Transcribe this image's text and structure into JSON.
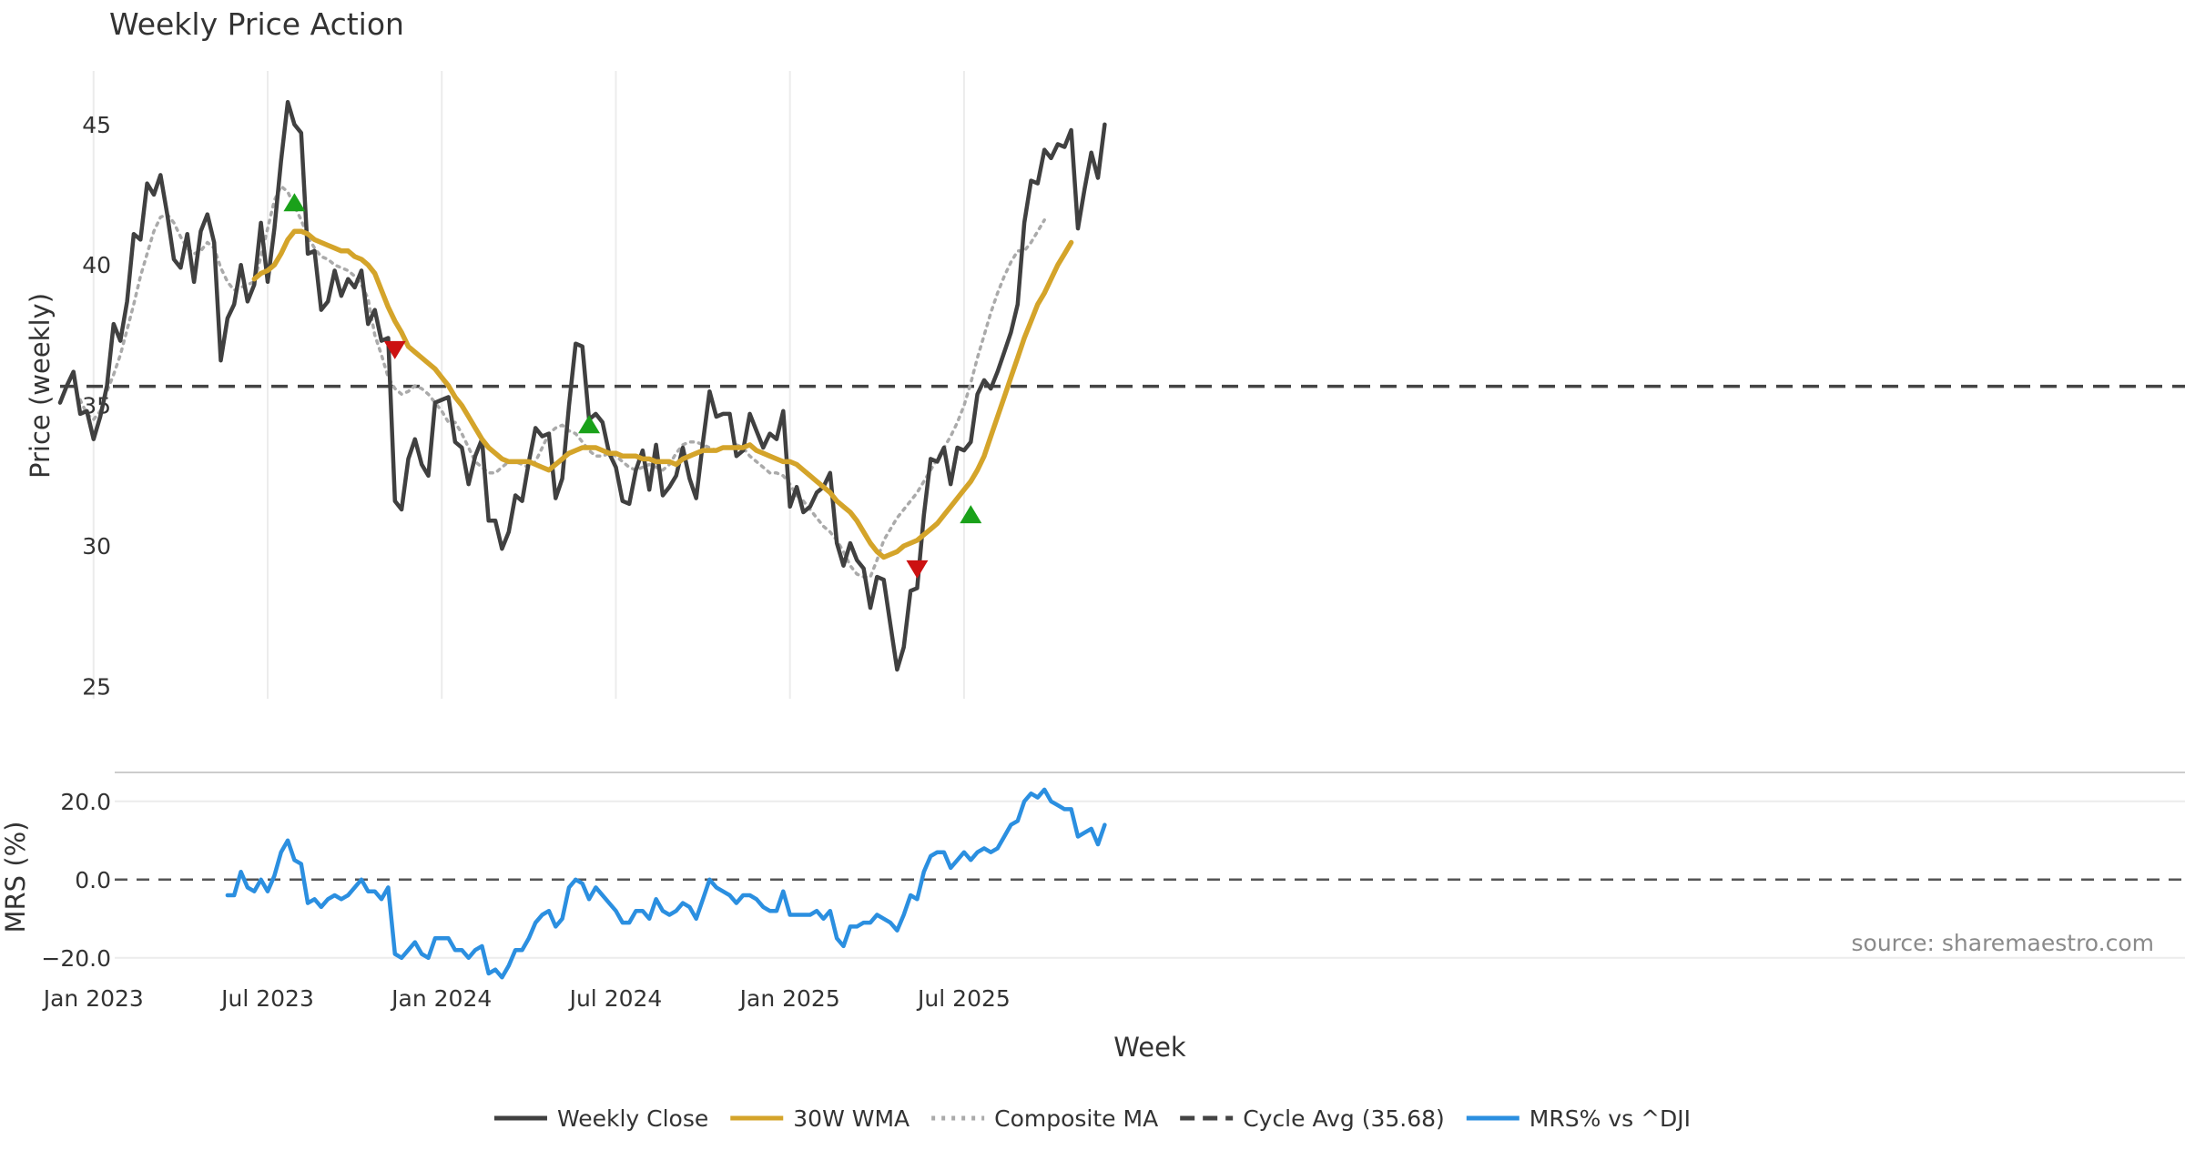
{
  "chart_data": [
    {
      "type": "line",
      "panel": "price",
      "title": "Weekly Price Action",
      "ylabel": "Price (weekly)",
      "ylim": [
        24.5,
        47.0
      ],
      "yticks": [
        25,
        30,
        35,
        40,
        45
      ],
      "grid": "vertical",
      "cycle_avg": 35.68,
      "series": [
        {
          "name": "Weekly Close",
          "color": "#404040",
          "style": "solid",
          "start_week": 0,
          "values": [
            35.1,
            35.7,
            36.2,
            34.7,
            34.8,
            33.8,
            34.6,
            35.7,
            37.9,
            37.3,
            38.7,
            41.1,
            40.9,
            42.9,
            42.5,
            43.2,
            41.8,
            40.2,
            39.9,
            41.1,
            39.4,
            41.2,
            41.8,
            40.8,
            36.6,
            38.1,
            38.6,
            40.0,
            38.7,
            39.3,
            41.5,
            39.4,
            41.3,
            43.7,
            45.8,
            45.0,
            44.7,
            40.4,
            40.5,
            38.4,
            38.7,
            39.8,
            38.9,
            39.5,
            39.2,
            39.8,
            37.9,
            38.4,
            37.3,
            37.4,
            31.6,
            31.3,
            33.1,
            33.8,
            32.9,
            32.5,
            35.1,
            35.2,
            35.3,
            33.7,
            33.5,
            32.2,
            33.2,
            33.8,
            30.9,
            30.9,
            29.9,
            30.5,
            31.8,
            31.6,
            33.0,
            34.2,
            33.9,
            34.0,
            31.7,
            32.4,
            35.0,
            37.2,
            37.1,
            34.5,
            34.7,
            34.4,
            33.3,
            32.8,
            31.6,
            31.5,
            32.7,
            33.4,
            32.0,
            33.6,
            31.8,
            32.1,
            32.5,
            33.5,
            32.4,
            31.7,
            33.7,
            35.5,
            34.6,
            34.7,
            34.7,
            33.2,
            33.4,
            34.7,
            34.1,
            33.5,
            34.0,
            33.8,
            34.8,
            31.4,
            32.1,
            31.2,
            31.4,
            31.9,
            32.1,
            32.6,
            30.1,
            29.3,
            30.1,
            29.5,
            29.2,
            27.8,
            28.9,
            28.8,
            27.2,
            25.6,
            26.4,
            28.4,
            28.5,
            31.1,
            33.1,
            33.0,
            33.5,
            32.2,
            33.5,
            33.4,
            33.7,
            35.4,
            35.9,
            35.6,
            36.2,
            36.9,
            37.6,
            38.6,
            41.5,
            43.0,
            42.9,
            44.1,
            43.8,
            44.3,
            44.2,
            44.8,
            41.3,
            42.7,
            44.0,
            43.1,
            45.0
          ]
        },
        {
          "name": "30W WMA",
          "color": "#d4a42a",
          "style": "solid",
          "start_week": 29,
          "values": [
            39.5,
            39.7,
            39.8,
            40.0,
            40.4,
            40.9,
            41.2,
            41.2,
            41.1,
            40.9,
            40.8,
            40.7,
            40.6,
            40.5,
            40.5,
            40.3,
            40.2,
            40.0,
            39.7,
            39.1,
            38.5,
            38.0,
            37.6,
            37.1,
            36.9,
            36.7,
            36.5,
            36.3,
            36.0,
            35.7,
            35.3,
            35.0,
            34.6,
            34.2,
            33.8,
            33.5,
            33.3,
            33.1,
            33.0,
            33.0,
            33.0,
            33.0,
            32.9,
            32.8,
            32.7,
            32.9,
            33.1,
            33.3,
            33.4,
            33.5,
            33.5,
            33.5,
            33.4,
            33.3,
            33.3,
            33.2,
            33.2,
            33.2,
            33.1,
            33.1,
            33.0,
            33.0,
            33.0,
            32.9,
            33.1,
            33.2,
            33.3,
            33.4,
            33.4,
            33.4,
            33.5,
            33.5,
            33.5,
            33.5,
            33.6,
            33.4,
            33.3,
            33.2,
            33.1,
            33.0,
            33.0,
            32.9,
            32.7,
            32.5,
            32.3,
            32.1,
            31.9,
            31.6,
            31.4,
            31.2,
            30.9,
            30.5,
            30.1,
            29.8,
            29.6,
            29.7,
            29.8,
            30.0,
            30.1,
            30.2,
            30.4,
            30.6,
            30.8,
            31.1,
            31.4,
            31.7,
            32.0,
            32.3,
            32.7,
            33.2,
            33.9,
            34.6,
            35.3,
            36.0,
            36.7,
            37.4,
            38.0,
            38.6,
            39.0,
            39.5,
            40.0,
            40.4,
            40.8
          ]
        },
        {
          "name": "Composite MA",
          "color": "#aaaaaa",
          "style": "dotted",
          "start_week": 3,
          "values": [
            35.2,
            34.7,
            34.5,
            34.8,
            35.5,
            36.1,
            36.8,
            37.7,
            38.6,
            39.6,
            40.4,
            41.2,
            41.7,
            41.8,
            41.5,
            41.0,
            40.6,
            40.4,
            40.5,
            40.8,
            40.6,
            39.9,
            39.4,
            39.1,
            39.2,
            39.3,
            39.4,
            40.3,
            41.3,
            42.3,
            42.8,
            42.6,
            42.1,
            41.6,
            41.0,
            40.6,
            40.3,
            40.2,
            40.0,
            39.9,
            39.8,
            39.6,
            39.3,
            38.8,
            37.5,
            36.8,
            36.0,
            35.6,
            35.4,
            35.5,
            35.7,
            35.6,
            35.4,
            35.1,
            34.8,
            34.4,
            34.4,
            34.0,
            33.5,
            33.0,
            32.8,
            32.6,
            32.6,
            32.8,
            33.0,
            33.0,
            32.9,
            32.8,
            33.0,
            33.5,
            34.0,
            34.2,
            34.3,
            34.1,
            34.0,
            33.7,
            33.4,
            33.2,
            33.2,
            33.3,
            33.2,
            33.0,
            32.8,
            32.7,
            32.8,
            32.9,
            32.8,
            32.7,
            32.9,
            33.3,
            33.6,
            33.7,
            33.7,
            33.6,
            33.5,
            33.4,
            33.5,
            33.5,
            33.6,
            33.5,
            33.2,
            33.0,
            32.8,
            32.6,
            32.6,
            32.5,
            32.2,
            31.8,
            31.6,
            31.3,
            31.0,
            30.7,
            30.5,
            30.2,
            29.8,
            29.3,
            29.0,
            28.9,
            28.9,
            29.5,
            30.2,
            30.6,
            31.0,
            31.3,
            31.6,
            31.9,
            32.3,
            32.7,
            33.1,
            33.5,
            33.9,
            34.4,
            35.0,
            35.8,
            36.7,
            37.5,
            38.3,
            39.0,
            39.6,
            40.1,
            40.5,
            40.5,
            40.8,
            41.2,
            41.6
          ]
        }
      ],
      "markers": [
        {
          "type": "up",
          "week": 35,
          "value": 42.2,
          "color": "#1aa11a"
        },
        {
          "type": "down",
          "week": 50,
          "value": 37.0,
          "color": "#cc1111"
        },
        {
          "type": "up",
          "week": 79,
          "value": 34.3,
          "color": "#1aa11a"
        },
        {
          "type": "down",
          "week": 128,
          "value": 29.2,
          "color": "#cc1111"
        },
        {
          "type": "up",
          "week": 136,
          "value": 31.1,
          "color": "#1aa11a"
        }
      ]
    },
    {
      "type": "line",
      "panel": "mrs",
      "ylabel": "MRS (%)",
      "ylim": [
        -24.0,
        26.0
      ],
      "yticks": [
        -20.0,
        0.0,
        20.0
      ],
      "ytick_labels": [
        "−20.0",
        "0.0",
        "20.0"
      ],
      "xlabel": "Week",
      "xticks": [
        {
          "label": "Jan 2023",
          "week": 5
        },
        {
          "label": "Jul 2023",
          "week": 31
        },
        {
          "label": "Jan 2024",
          "week": 57
        },
        {
          "label": "Jul 2024",
          "week": 83
        },
        {
          "label": "Jan 2025",
          "week": 109
        },
        {
          "label": "Jul 2025",
          "week": 135
        }
      ],
      "series": [
        {
          "name": "MRS% vs ^DJI",
          "color": "#2b8fe0",
          "style": "solid",
          "start_week": 25,
          "values": [
            -4,
            -4,
            2,
            -2,
            -3,
            0,
            -3,
            1,
            7,
            10,
            5,
            4,
            -6,
            -5,
            -7,
            -5,
            -4,
            -5,
            -4,
            -2,
            0,
            -3,
            -3,
            -5,
            -2,
            -19,
            -20,
            -18,
            -16,
            -19,
            -20,
            -15,
            -15,
            -15,
            -18,
            -18,
            -20,
            -18,
            -17,
            -24,
            -23,
            -25,
            -22,
            -18,
            -18,
            -15,
            -11,
            -9,
            -8,
            -12,
            -10,
            -2,
            0,
            -1,
            -5,
            -2,
            -4,
            -6,
            -8,
            -11,
            -11,
            -8,
            -8,
            -10,
            -5,
            -8,
            -9,
            -8,
            -6,
            -7,
            -10,
            -5,
            0,
            -2,
            -3,
            -4,
            -6,
            -4,
            -4,
            -5,
            -7,
            -8,
            -8,
            -3,
            -9,
            -9,
            -9,
            -9,
            -8,
            -10,
            -8,
            -15,
            -17,
            -12,
            -12,
            -11,
            -11,
            -9,
            -10,
            -11,
            -13,
            -9,
            -4,
            -5,
            2,
            6,
            7,
            7,
            3,
            5,
            7,
            5,
            7,
            8,
            7,
            8,
            11,
            14,
            15,
            20,
            22,
            21,
            23,
            20,
            19,
            18,
            18,
            11,
            12,
            13,
            9,
            14
          ]
        }
      ]
    }
  ],
  "legend": {
    "placement": "bottom",
    "items": [
      {
        "label": "Weekly Close",
        "color": "#404040",
        "style": "solid"
      },
      {
        "label": "30W WMA",
        "color": "#d4a42a",
        "style": "solid"
      },
      {
        "label": "Composite MA",
        "color": "#aaaaaa",
        "style": "dotted"
      },
      {
        "label": "Cycle Avg (35.68)",
        "color": "#444444",
        "style": "dashed"
      },
      {
        "label": "MRS% vs ^DJI",
        "color": "#2b8fe0",
        "style": "solid"
      }
    ]
  },
  "source_text": "source: sharemaestro.com"
}
